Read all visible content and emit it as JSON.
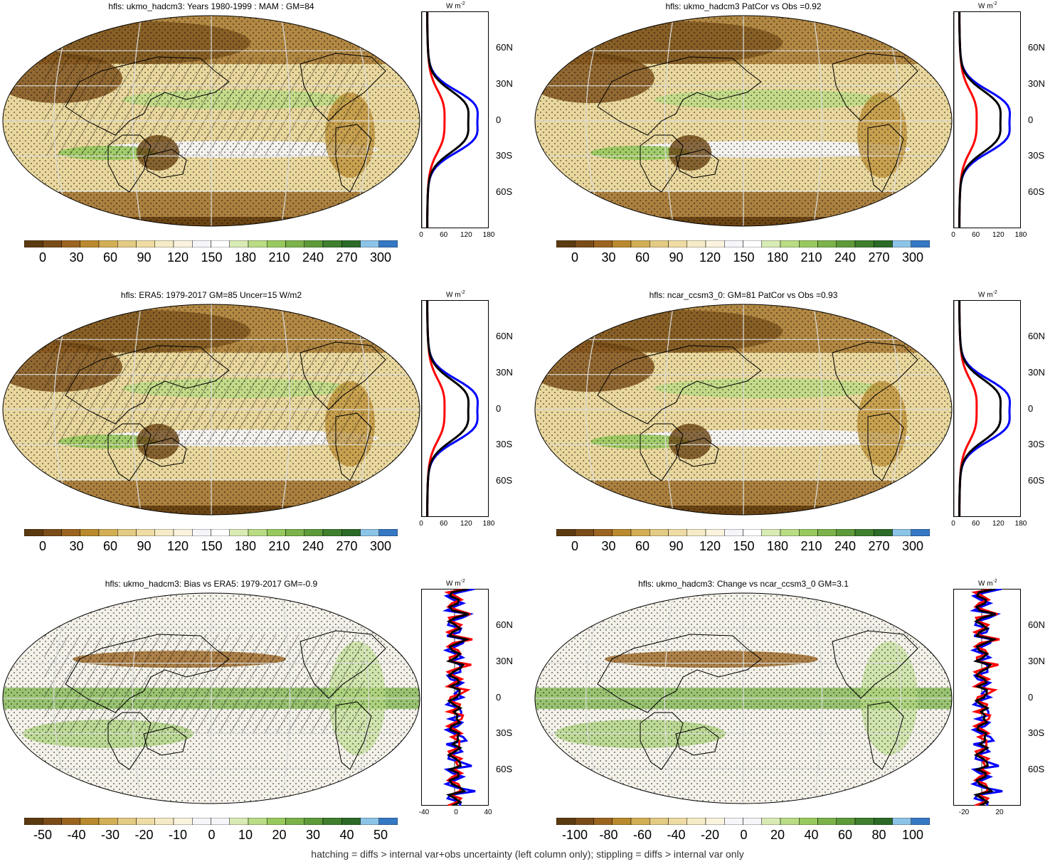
{
  "panels": [
    {
      "title": "hfls: ukmo_hadcm3: Years 1980-1999 : MAM : GM=84",
      "cbar_labels": [
        "0",
        "30",
        "60",
        "90",
        "120",
        "150",
        "180",
        "210",
        "240",
        "270",
        "300"
      ],
      "cbar_type": "abs",
      "profile_xticks": [
        "0",
        "60",
        "120",
        "180"
      ],
      "hatching": true
    },
    {
      "title": "hfls: ukmo_hadcm3 PatCor vs Obs =0.92",
      "cbar_labels": [
        "0",
        "30",
        "60",
        "90",
        "120",
        "150",
        "180",
        "210",
        "240",
        "270",
        "300"
      ],
      "cbar_type": "abs",
      "profile_xticks": [
        "0",
        "60",
        "120",
        "180"
      ],
      "hatching": false
    },
    {
      "title": "hfls: ERA5: 1979-2017 GM=85 Uncer=15 W/m2",
      "cbar_labels": [
        "0",
        "30",
        "60",
        "90",
        "120",
        "150",
        "180",
        "210",
        "240",
        "270",
        "300"
      ],
      "cbar_type": "abs",
      "profile_xticks": [
        "0",
        "60",
        "120",
        "180"
      ],
      "hatching": true
    },
    {
      "title": "hfls: ncar_ccsm3_0: GM=81 PatCor vs Obs =0.93",
      "cbar_labels": [
        "0",
        "30",
        "60",
        "90",
        "120",
        "150",
        "180",
        "210",
        "240",
        "270",
        "300"
      ],
      "cbar_type": "abs",
      "profile_xticks": [
        "0",
        "60",
        "120",
        "180"
      ],
      "hatching": false
    },
    {
      "title": "hfls: ukmo_hadcm3: Bias vs ERA5: 1979-2017 GM=-0.9",
      "cbar_labels": [
        "-50",
        "-40",
        "-30",
        "-20",
        "-10",
        "0",
        "10",
        "20",
        "30",
        "40",
        "50"
      ],
      "cbar_type": "diff",
      "profile_xticks": [
        "-40",
        "0",
        "40"
      ],
      "hatching": true
    },
    {
      "title": "hfls: ukmo_hadcm3: Change vs ncar_ccsm3_0 GM=3.1",
      "cbar_labels": [
        "-100",
        "-80",
        "-60",
        "-40",
        "-20",
        "0",
        "20",
        "40",
        "60",
        "80",
        "100"
      ],
      "cbar_type": "diff",
      "profile_xticks": [
        "-20",
        "20"
      ],
      "hatching": false
    }
  ],
  "lat_labels": [
    "60N",
    "30N",
    "0",
    "30S",
    "60S"
  ],
  "units_label": "W m",
  "units_sup": "-2",
  "footnote": "hatching = diffs > internal var+obs uncertainty (left column only); stippling = diffs > internal var only",
  "colors": {
    "abs": [
      "#5c3a10",
      "#7a4c18",
      "#9b6520",
      "#b98a2e",
      "#d2ae55",
      "#e3cb84",
      "#efdca4",
      "#f5ebc6",
      "#faf4de",
      "#f6f6fa",
      "#ffffff",
      "#d9ebb4",
      "#b9dc85",
      "#98c95e",
      "#7bb34a",
      "#5e9a3a",
      "#3f7f2e",
      "#2c6a28",
      "#8cc4e8",
      "#3578c4"
    ],
    "profile_blue": "#0000ff",
    "profile_red": "#ff0000",
    "profile_black": "#000000"
  }
}
